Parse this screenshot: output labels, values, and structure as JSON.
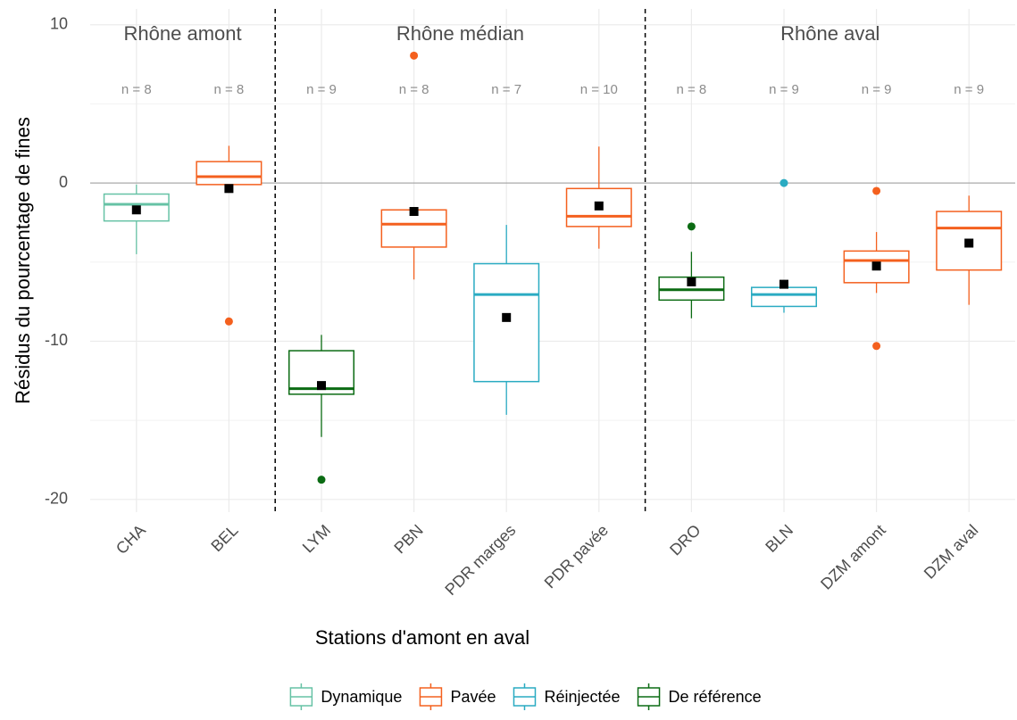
{
  "chart_data": {
    "type": "box",
    "x_label": "Stations d'amont en aval",
    "y_label": "Résidus du pourcentage de fines",
    "categories": [
      "CHA",
      "BEL",
      "LYM",
      "PBN",
      "PDR marges",
      "PDR pavée",
      "DRO",
      "BLN",
      "DZM amont",
      "DZM aval"
    ],
    "groups": [
      {
        "name": "Rhône amont",
        "categories": [
          "CHA",
          "BEL"
        ]
      },
      {
        "name": "Rhône médian",
        "categories": [
          "LYM",
          "PBN",
          "PDR marges",
          "PDR pavée"
        ]
      },
      {
        "name": "Rhône aval",
        "categories": [
          "DRO",
          "BLN",
          "DZM amont",
          "DZM aval"
        ]
      }
    ],
    "series": [
      {
        "name": "Dynamique",
        "color": "#66c2a5"
      },
      {
        "name": "Pavée",
        "color": "#f4601e"
      },
      {
        "name": "Réinjectée",
        "color": "#2aabc2"
      },
      {
        "name": "De référence",
        "color": "#0b6b13"
      }
    ],
    "boxes": [
      {
        "series": "Dynamique",
        "low": -4.5,
        "q1": -2.4,
        "median": -1.35,
        "q3": -0.7,
        "high": -0.1,
        "mean": -1.7,
        "outliers": [],
        "n_label": "n = 8"
      },
      {
        "series": "Pavée",
        "low": -0.1,
        "q1": -0.1,
        "median": 0.4,
        "q3": 1.35,
        "high": 2.35,
        "mean": -0.35,
        "outliers": [
          -8.75
        ],
        "n_label": "n = 8"
      },
      {
        "series": "De référence",
        "low": -16.05,
        "q1": -13.35,
        "median": -13.0,
        "q3": -10.6,
        "high": -9.6,
        "mean": -12.8,
        "outliers": [
          -18.75
        ],
        "n_label": "n = 9"
      },
      {
        "series": "Pavée",
        "low": -6.1,
        "q1": -4.05,
        "median": -2.6,
        "q3": -1.7,
        "high": -1.7,
        "mean": -1.8,
        "outliers": [
          8.05
        ],
        "n_label": "n = 8"
      },
      {
        "series": "Réinjectée",
        "low": -14.65,
        "q1": -12.55,
        "median": -7.05,
        "q3": -5.1,
        "high": -2.65,
        "mean": -8.5,
        "outliers": [],
        "n_label": "n = 7"
      },
      {
        "series": "Pavée",
        "low": -4.15,
        "q1": -2.75,
        "median": -2.1,
        "q3": -0.35,
        "high": 2.3,
        "mean": -1.45,
        "outliers": [],
        "n_label": "n = 10"
      },
      {
        "series": "De référence",
        "low": -8.55,
        "q1": -7.4,
        "median": -6.75,
        "q3": -5.95,
        "high": -4.35,
        "mean": -6.25,
        "outliers": [
          -2.75
        ],
        "n_label": "n = 8"
      },
      {
        "series": "Réinjectée",
        "low": -8.2,
        "q1": -7.8,
        "median": -7.05,
        "q3": -6.6,
        "high": -6.6,
        "mean": -6.4,
        "outliers": [
          0
        ],
        "n_label": "n = 9"
      },
      {
        "series": "Pavée",
        "low": -6.95,
        "q1": -6.3,
        "median": -4.9,
        "q3": -4.3,
        "high": -3.1,
        "mean": -5.25,
        "outliers": [
          -0.5,
          -10.3
        ],
        "n_label": "n = 9"
      },
      {
        "series": "Pavée",
        "low": -7.7,
        "q1": -5.5,
        "median": -2.85,
        "q3": -1.8,
        "high": -0.8,
        "mean": -3.8,
        "outliers": [],
        "n_label": "n = 9"
      }
    ],
    "ylim": [
      -20.8,
      11
    ],
    "yticks": [
      -20,
      -10,
      0,
      10
    ],
    "grid": true,
    "legend": "bottom"
  }
}
